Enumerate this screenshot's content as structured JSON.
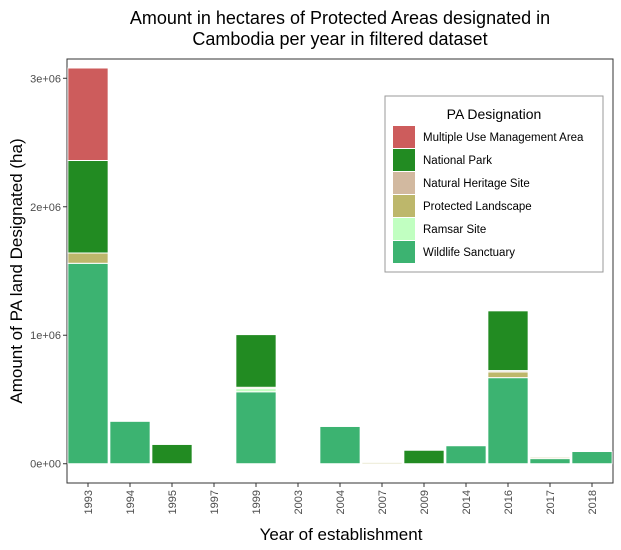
{
  "chart_data": {
    "type": "bar",
    "stacked": true,
    "title_lines": [
      "Amount in hectares of Protected Areas designated in",
      "Cambodia per year in filtered dataset"
    ],
    "xlabel": "Year of establishment",
    "ylabel": "Amount of PA land Designated (ha)",
    "categories": [
      "1993",
      "1994",
      "1995",
      "1997",
      "1999",
      "2003",
      "2004",
      "2007",
      "2009",
      "2014",
      "2016",
      "2017",
      "2018"
    ],
    "ylim": [
      -150000,
      3150000
    ],
    "yticks": [
      0,
      1000000,
      2000000,
      3000000
    ],
    "ytick_labels": [
      "0e+00",
      "1e+06",
      "2e+06",
      "3e+06"
    ],
    "grid": false,
    "legend": {
      "title": "PA Designation",
      "position": "top-right"
    },
    "series": [
      {
        "name": "Wildlife Sanctuary",
        "color": "#3CB371",
        "values": [
          1560000,
          330000,
          0,
          0,
          560000,
          0,
          290000,
          0,
          0,
          140000,
          670000,
          40000,
          95000
        ]
      },
      {
        "name": "Ramsar Site",
        "color": "#C1FFC1",
        "values": [
          0,
          0,
          0,
          0,
          25000,
          0,
          0,
          0,
          0,
          0,
          0,
          0,
          0
        ]
      },
      {
        "name": "Protected Landscape",
        "color": "#BDB76B",
        "values": [
          80000,
          0,
          0,
          0,
          10000,
          0,
          0,
          10000,
          0,
          0,
          45000,
          10000,
          0
        ]
      },
      {
        "name": "Natural Heritage Site",
        "color": "#D2B9A0",
        "values": [
          0,
          0,
          0,
          0,
          0,
          0,
          0,
          0,
          0,
          0,
          10000,
          0,
          0
        ]
      },
      {
        "name": "National Park",
        "color": "#228B22",
        "values": [
          720000,
          0,
          150000,
          0,
          410000,
          0,
          0,
          0,
          105000,
          0,
          465000,
          0,
          0
        ]
      },
      {
        "name": "Multiple Use Management Area",
        "color": "#CD5C5C",
        "values": [
          720000,
          0,
          0,
          0,
          0,
          0,
          0,
          0,
          0,
          0,
          0,
          0,
          0
        ]
      }
    ],
    "legend_order": [
      "Multiple Use Management Area",
      "National Park",
      "Natural Heritage Site",
      "Protected Landscape",
      "Ramsar Site",
      "Wildlife Sanctuary"
    ]
  }
}
